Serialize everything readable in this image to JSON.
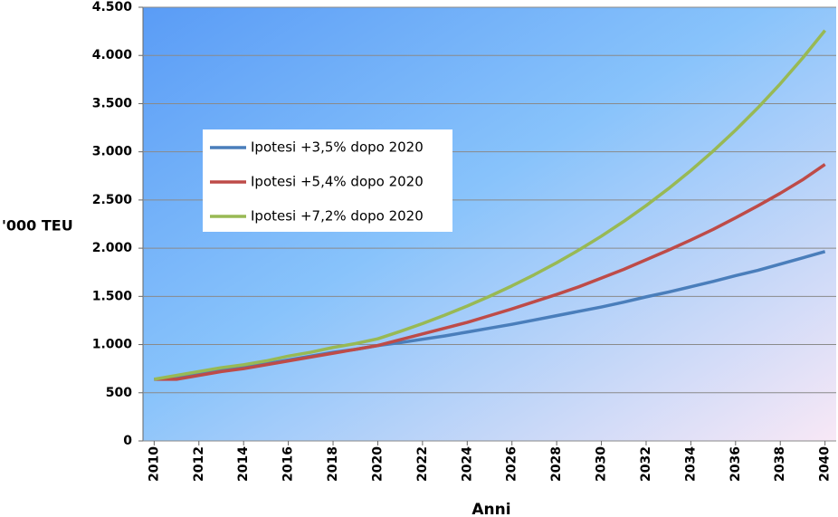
{
  "chart_data": {
    "type": "line",
    "x_label": "Anni",
    "y_label": "'000 TEU",
    "x": [
      2010,
      2011,
      2012,
      2013,
      2014,
      2015,
      2016,
      2017,
      2018,
      2019,
      2020,
      2021,
      2022,
      2023,
      2024,
      2025,
      2026,
      2027,
      2028,
      2029,
      2030,
      2031,
      2032,
      2033,
      2034,
      2035,
      2036,
      2037,
      2038,
      2039,
      2040
    ],
    "series": [
      {
        "name": "Ipotesi +3,5% dopo 2020",
        "color": "#4a7ebb",
        "values": [
          640,
          650,
          690,
          730,
          760,
          800,
          840,
          880,
          920,
          950,
          990,
          1020,
          1055,
          1090,
          1130,
          1170,
          1210,
          1255,
          1300,
          1345,
          1390,
          1440,
          1495,
          1545,
          1600,
          1655,
          1715,
          1770,
          1835,
          1900,
          1965
        ]
      },
      {
        "name": "Ipotesi +5,4% dopo 2020",
        "color": "#be4b48",
        "values": [
          640,
          640,
          680,
          720,
          750,
          790,
          830,
          870,
          910,
          950,
          990,
          1050,
          1110,
          1170,
          1230,
          1300,
          1370,
          1445,
          1520,
          1600,
          1690,
          1780,
          1880,
          1980,
          2085,
          2195,
          2315,
          2440,
          2570,
          2710,
          2870
        ]
      },
      {
        "name": "Ipotesi +7,2% dopo 2020",
        "color": "#98b954",
        "values": [
          640,
          680,
          720,
          760,
          790,
          830,
          880,
          920,
          970,
          1010,
          1060,
          1136,
          1218,
          1306,
          1400,
          1501,
          1609,
          1725,
          1849,
          1982,
          2125,
          2278,
          2442,
          2618,
          2806,
          3008,
          3225,
          3457,
          3706,
          3973,
          4259
        ]
      }
    ],
    "xlim": [
      2009.5,
      2040.5
    ],
    "xticks": [
      2010,
      2012,
      2014,
      2016,
      2018,
      2020,
      2022,
      2024,
      2026,
      2028,
      2030,
      2032,
      2034,
      2036,
      2038,
      2040
    ],
    "ylim": [
      0,
      4500
    ],
    "yticks": [
      0,
      500,
      {
        "value": 1000,
        "label": "1.000"
      },
      {
        "value": 1500,
        "label": "1.500"
      },
      {
        "value": 2000,
        "label": "2.000"
      },
      {
        "value": 2500,
        "label": "2.500"
      },
      {
        "value": 3000,
        "label": "3.000"
      },
      {
        "value": 3500,
        "label": "3.500"
      },
      {
        "value": 4000,
        "label": "4.000"
      },
      {
        "value": 4500,
        "label": "4.500"
      }
    ],
    "grid": true
  }
}
